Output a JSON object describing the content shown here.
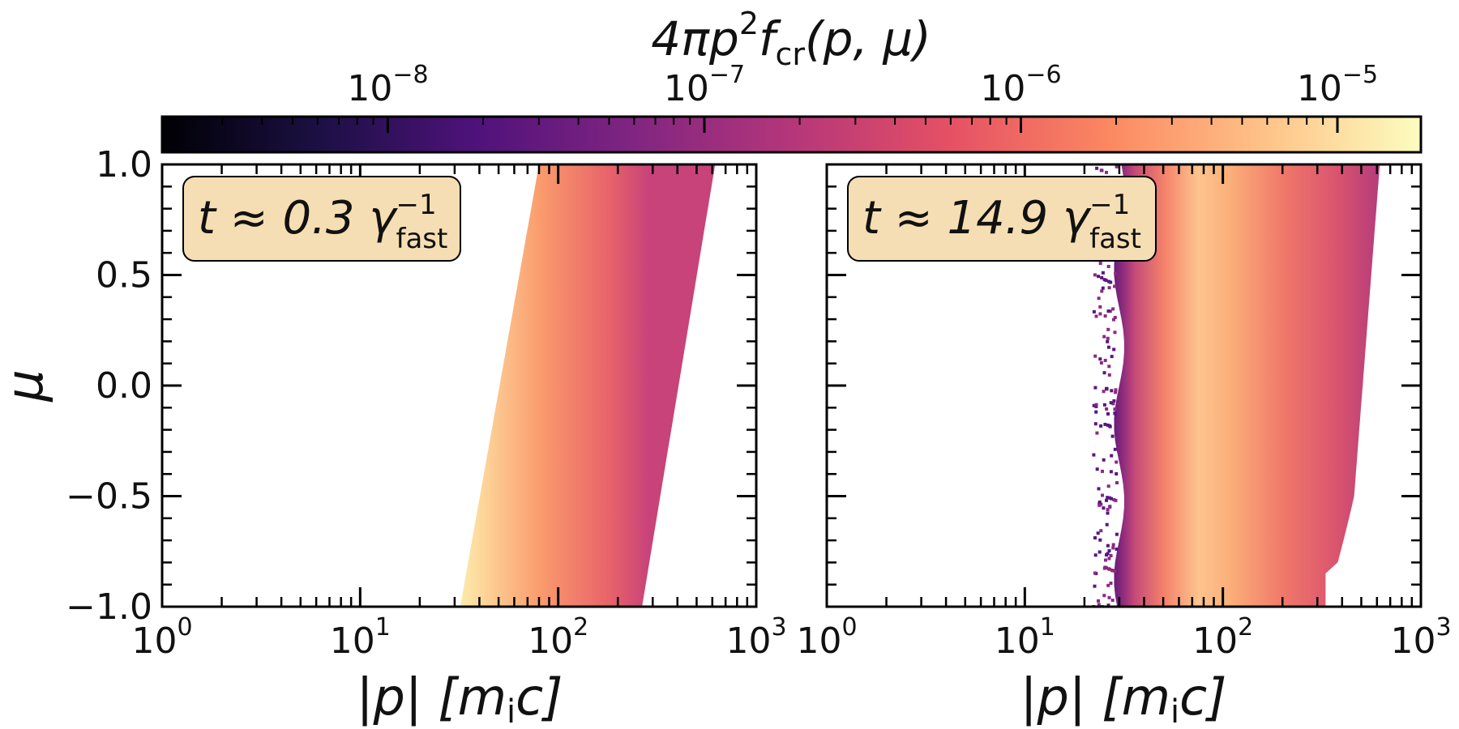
{
  "chart_data": [
    {
      "type": "heatmap",
      "panel": "left",
      "annotation": {
        "prefix": "t ≈ 0.3 ",
        "sym": "γ",
        "sup": "−1",
        "sub": "fast"
      },
      "xscale": "log",
      "xlim": [
        1,
        1000
      ],
      "ylim": [
        -1.0,
        1.0
      ],
      "xlabel": "|p| [m",
      "xlabel_sub": "i",
      "xlabel_end": "c]",
      "ylabel": "μ",
      "xticks": [
        {
          "base": "10",
          "exp": "0"
        },
        {
          "base": "10",
          "exp": "1"
        },
        {
          "base": "10",
          "exp": "2"
        },
        {
          "base": "10",
          "exp": "3"
        }
      ],
      "yticks": [
        "−1.0",
        "−0.5",
        "0.0",
        "0.5",
        "1.0"
      ],
      "band": {
        "p_min_at_mu_m1": 32,
        "p_min_at_mu_p1": 80,
        "p_max_at_mu_m1": 265,
        "p_max_at_mu_p1": 620,
        "peak_value": "1e-5"
      }
    },
    {
      "type": "heatmap",
      "panel": "right",
      "annotation": {
        "prefix": "t ≈ 14.9 ",
        "sym": "γ",
        "sup": "−1",
        "sub": "fast"
      },
      "xscale": "log",
      "xlim": [
        1,
        1000
      ],
      "ylim": [
        -1.0,
        1.0
      ],
      "xlabel": "|p| [m",
      "xlabel_sub": "i",
      "xlabel_end": "c]",
      "xticks": [
        {
          "base": "10",
          "exp": "0"
        },
        {
          "base": "10",
          "exp": "1"
        },
        {
          "base": "10",
          "exp": "2"
        },
        {
          "base": "10",
          "exp": "3"
        }
      ],
      "band": {
        "p_min": 30,
        "p_max_low_mu": 330,
        "p_max_high_mu": 620,
        "peak_p": 80,
        "peak_value": "1e-5"
      }
    }
  ],
  "colorbar": {
    "title_parts": {
      "a": "4πp",
      "sup": "2",
      "f": "f",
      "sub": "cr",
      "args": "(p, μ)"
    },
    "scale": "log",
    "ticks": [
      {
        "base": "10",
        "exp": "−8"
      },
      {
        "base": "10",
        "exp": "−7"
      },
      {
        "base": "10",
        "exp": "−6"
      },
      {
        "base": "10",
        "exp": "−5"
      }
    ],
    "colormap": "magma",
    "colors": [
      "#000004",
      "#1c1044",
      "#4f127b",
      "#812581",
      "#b5367a",
      "#e55064",
      "#fb8761",
      "#fec287",
      "#fcfdbf"
    ]
  },
  "annotation_box_color": "#f5deb3"
}
